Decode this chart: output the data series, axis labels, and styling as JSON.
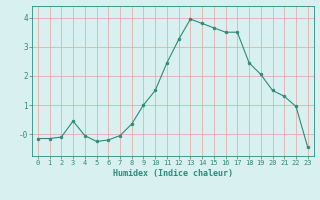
{
  "x": [
    0,
    1,
    2,
    3,
    4,
    5,
    6,
    7,
    8,
    9,
    10,
    11,
    12,
    13,
    14,
    15,
    16,
    17,
    18,
    19,
    20,
    21,
    22,
    23
  ],
  "y": [
    -0.15,
    -0.15,
    -0.1,
    0.45,
    -0.05,
    -0.25,
    -0.2,
    -0.05,
    0.35,
    1.0,
    1.5,
    2.45,
    3.25,
    3.95,
    3.8,
    3.65,
    3.5,
    3.5,
    2.45,
    2.05,
    1.5,
    1.3,
    0.95,
    -0.45
  ],
  "line_color": "#2e8b7a",
  "marker": "o",
  "marker_size": 2.0,
  "bg_color": "#d8f0f0",
  "grid_color": "#e8a0a0",
  "axis_color": "#2e8b7a",
  "tick_color": "#2e8b7a",
  "xlabel": "Humidex (Indice chaleur)",
  "xlabel_fontsize": 6.0,
  "xlabel_color": "#2e8b7a",
  "ytick_values": [
    0,
    1,
    2,
    3,
    4
  ],
  "ytick_labels": [
    "-0",
    "1",
    "2",
    "3",
    "4"
  ],
  "xlim": [
    -0.5,
    23.5
  ],
  "ylim": [
    -0.75,
    4.4
  ],
  "xtick_labels": [
    "0",
    "1",
    "2",
    "3",
    "4",
    "5",
    "6",
    "7",
    "8",
    "9",
    "10",
    "11",
    "12",
    "13",
    "14",
    "15",
    "16",
    "17",
    "18",
    "19",
    "20",
    "21",
    "22",
    "23"
  ],
  "font_family": "monospace",
  "tick_fontsize": 5.0,
  "linewidth": 0.8
}
